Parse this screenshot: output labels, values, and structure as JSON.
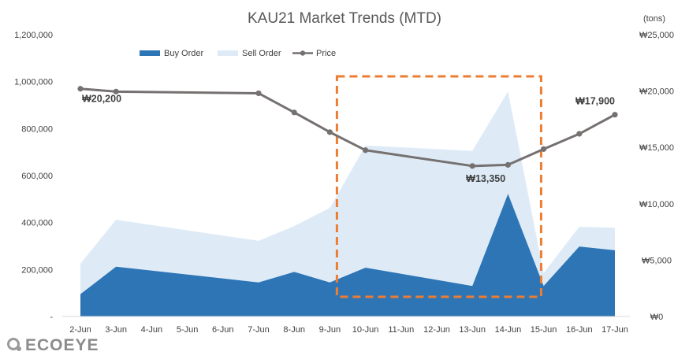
{
  "chart_data": {
    "type": "area",
    "title": "KAU21 Market Trends (MTD)",
    "y2_unit": "(tons)",
    "categories": [
      "2-Jun",
      "3-Jun",
      "4-Jun",
      "5-Jun",
      "6-Jun",
      "7-Jun",
      "8-Jun",
      "9-Jun",
      "10-Jun",
      "11-Jun",
      "12-Jun",
      "13-Jun",
      "14-Jun",
      "15-Jun",
      "16-Jun",
      "17-Jun"
    ],
    "y_left": {
      "min": 0,
      "max": 1200000,
      "step": 200000,
      "tick_labels": [
        "-",
        "200,000",
        "400,000",
        "600,000",
        "800,000",
        "1,000,000",
        "1,200,000"
      ]
    },
    "y_right": {
      "min": 0,
      "max": 25000,
      "step": 5000,
      "tick_labels": [
        "₩0",
        "₩5,000",
        "₩10,000",
        "₩15,000",
        "₩20,000",
        "₩25,000"
      ]
    },
    "grid": false,
    "legend_position": "top-left",
    "series": [
      {
        "name": "Buy Order",
        "axis": "left",
        "kind": "area",
        "color": "#2e75b6",
        "x": [
          "2-Jun",
          "3-Jun",
          "7-Jun",
          "8-Jun",
          "9-Jun",
          "10-Jun",
          "13-Jun",
          "14-Jun",
          "15-Jun",
          "16-Jun",
          "17-Jun"
        ],
        "values": [
          95000,
          212000,
          145000,
          190000,
          145000,
          208000,
          130000,
          522000,
          130000,
          298000,
          282000
        ]
      },
      {
        "name": "Sell Order",
        "axis": "left",
        "kind": "area",
        "color": "#deebf7",
        "x": [
          "2-Jun",
          "3-Jun",
          "7-Jun",
          "8-Jun",
          "9-Jun",
          "10-Jun",
          "13-Jun",
          "14-Jun",
          "15-Jun",
          "16-Jun",
          "17-Jun"
        ],
        "values": [
          225000,
          412000,
          322000,
          385000,
          462000,
          728000,
          705000,
          958000,
          185000,
          382000,
          378000
        ]
      },
      {
        "name": "Price",
        "axis": "right",
        "kind": "line",
        "color": "#767171",
        "x": [
          "2-Jun",
          "3-Jun",
          "7-Jun",
          "8-Jun",
          "9-Jun",
          "10-Jun",
          "13-Jun",
          "14-Jun",
          "15-Jun",
          "16-Jun",
          "17-Jun"
        ],
        "values": [
          20200,
          19950,
          19800,
          18100,
          16350,
          14750,
          13350,
          13450,
          14850,
          16200,
          17900
        ]
      }
    ],
    "annotations": [
      {
        "text": "₩20,200",
        "x": "2-Jun",
        "value": 20200,
        "placement": "below"
      },
      {
        "text": "₩13,350",
        "x": "13-Jun",
        "value": 13350,
        "placement": "below"
      },
      {
        "text": "₩17,900",
        "x": "17-Jun",
        "value": 17900,
        "placement": "above"
      }
    ],
    "highlight_box": {
      "from": "9-Jun",
      "to": "14-Jun",
      "color": "#ed7d31",
      "style": "dashed"
    }
  },
  "logo": {
    "text": "ECOEYE"
  }
}
